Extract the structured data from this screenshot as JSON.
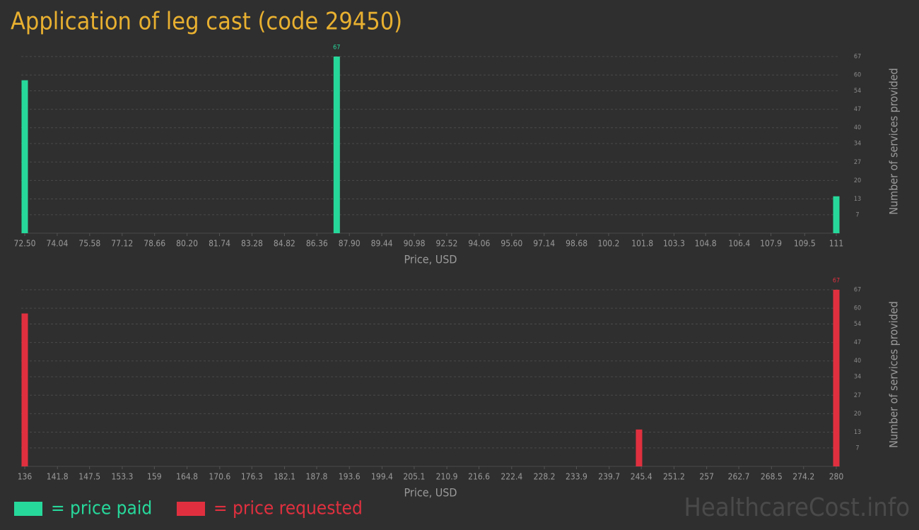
{
  "title": "Application of leg cast (code 29450)",
  "watermark": "HealthcareCost.info",
  "chart_data": [
    {
      "type": "bar",
      "xlabel": "Price, USD",
      "ylabel": "Number of services provided",
      "series": [
        {
          "name": "= price paid",
          "color": "#27d89b",
          "x": [
            72.5,
            87.3,
            111
          ],
          "values": [
            58,
            67,
            14
          ]
        }
      ],
      "xlim": [
        72.5,
        111
      ],
      "ylim": [
        0,
        67
      ],
      "xticks": [
        {
          "value": 72.5,
          "label": "72.50"
        },
        74.04,
        75.58,
        77.12,
        78.66,
        {
          "value": 80.2,
          "label": "80.20"
        },
        81.74,
        83.28,
        84.82,
        86.36,
        {
          "value": 87.9,
          "label": "87.90"
        },
        89.44,
        90.98,
        92.52,
        94.06,
        {
          "value": 95.6,
          "label": "95.60"
        },
        97.14,
        98.68,
        100.2,
        101.8,
        103.3,
        104.8,
        106.4,
        107.9,
        109.5,
        111
      ],
      "yticks": [
        7,
        13,
        20,
        27,
        34,
        40,
        47,
        54,
        60,
        67
      ],
      "grid": true
    },
    {
      "type": "bar",
      "xlabel": "Price, USD",
      "ylabel": "Number of services provided",
      "series": [
        {
          "name": "= price requested",
          "color": "#e0303f",
          "x": [
            136,
            245,
            280
          ],
          "values": [
            58,
            14,
            67
          ]
        }
      ],
      "xlim": [
        136,
        280
      ],
      "ylim": [
        0,
        67
      ],
      "xticks": [
        136,
        141.8,
        147.5,
        153.3,
        159,
        164.8,
        170.6,
        176.3,
        182.1,
        187.8,
        193.6,
        199.4,
        205.1,
        210.9,
        216.6,
        222.4,
        228.2,
        233.9,
        239.7,
        245.4,
        251.2,
        257,
        262.7,
        268.5,
        274.2,
        280
      ],
      "yticks": [
        7,
        13,
        20,
        27,
        34,
        40,
        47,
        54,
        60,
        67
      ],
      "grid": true
    }
  ]
}
